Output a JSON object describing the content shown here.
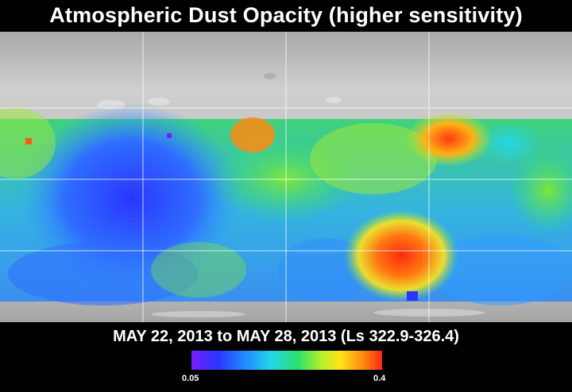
{
  "title": "Atmospheric Dust Opacity (higher sensitivity)",
  "date_range": "MAY 22, 2013 to MAY 28, 2013 (Ls 322.9-326.4)",
  "colorbar": {
    "min_label": "0.05",
    "max_label": "0.4",
    "colors": [
      "#7a1cff",
      "#2a36ff",
      "#1f8bff",
      "#24d6e6",
      "#2ee06a",
      "#b6f029",
      "#ffe41a",
      "#ff9a12",
      "#ff2a0f"
    ]
  }
}
